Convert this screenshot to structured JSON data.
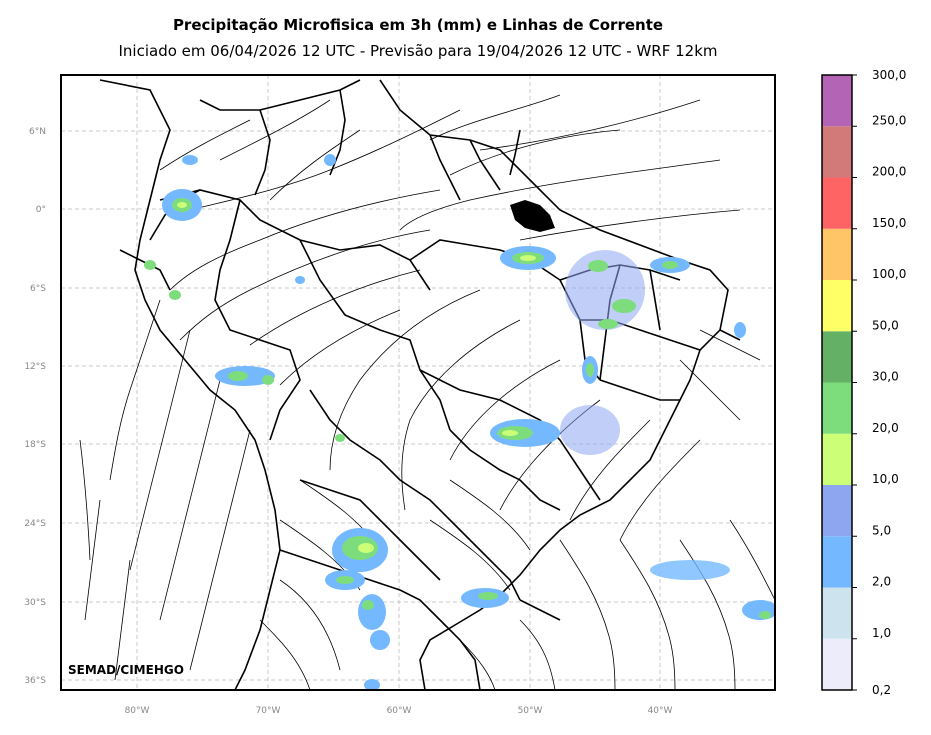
{
  "title": "Precipitação Microfisica em 3h (mm) e Linhas de Corrente",
  "subtitle": "Iniciado em 06/04/2026 12 UTC - Previsão para 19/04/2026 12 UTC - WRF 12km",
  "credit": "SEMAD/CIMEHGO",
  "lat_labels": [
    "6°N",
    "0°",
    "6°S",
    "12°S",
    "18°S",
    "24°S",
    "30°S",
    "36°S"
  ],
  "lon_labels": [
    "80°W",
    "70°W",
    "60°W",
    "50°W",
    "40°W"
  ],
  "colorbar": {
    "labels": [
      "0,2",
      "1,0",
      "2,0",
      "5,0",
      "10,0",
      "20,0",
      "30,0",
      "50,0",
      "100,0",
      "150,0",
      "200,0",
      "250,0",
      "300,0"
    ],
    "colors": [
      "#ececfa",
      "#cde4ee",
      "#74b9ff",
      "#8ea6f0",
      "#ccff77",
      "#7ddd7d",
      "#64b064",
      "#ffff66",
      "#ffc566",
      "#ff6464",
      "#d27a7a",
      "#b464b4"
    ]
  }
}
